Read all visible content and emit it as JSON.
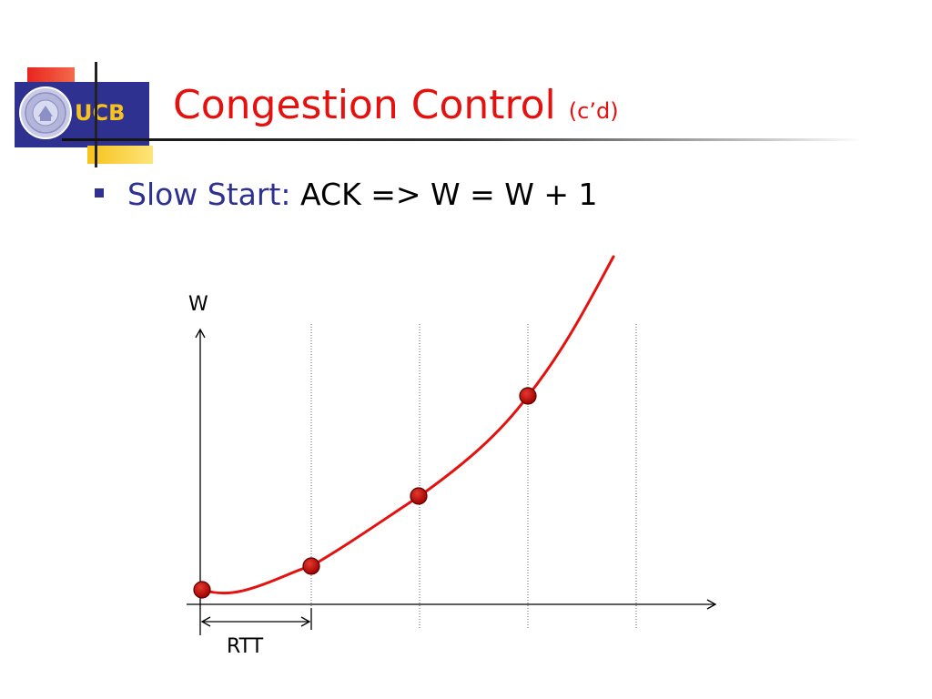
{
  "logo": {
    "text": "UCB",
    "seal_icon": "university-seal-icon",
    "colors": {
      "red": "#e8241f",
      "blue": "#2e3190",
      "yellow": "#f7c21b"
    }
  },
  "title": {
    "main": "Congestion Control",
    "suffix": "(c’d)",
    "color": "#e4110f"
  },
  "bullet": {
    "label": "Slow Start:",
    "text": "ACK => W = W + 1",
    "label_color": "#2e3190"
  },
  "diagram": {
    "y_label": "W",
    "interval_label": "RTT",
    "curve_color": "#e4110f",
    "point_color": "#c00000",
    "rtt_marks": 4,
    "points_on_curve": 4
  }
}
